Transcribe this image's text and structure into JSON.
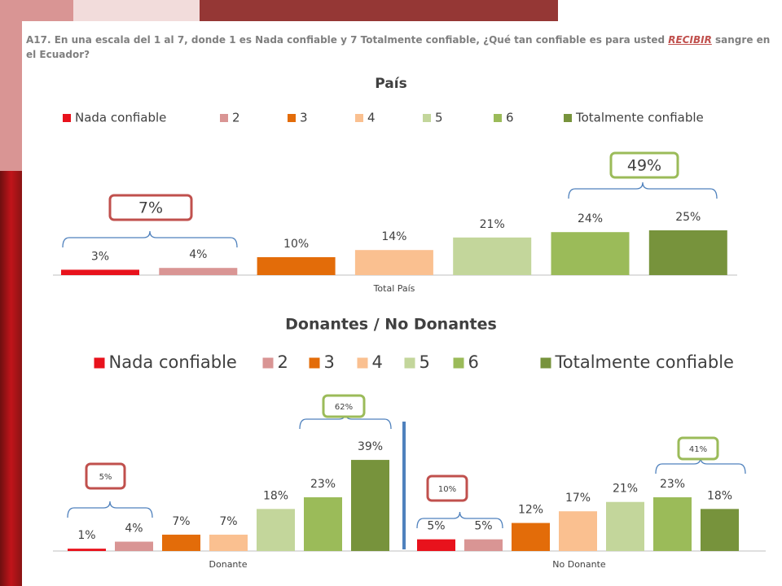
{
  "question": {
    "before": "A17. En una escala del 1 al 7, donde 1 es Nada confiable y 7 Totalmente confiable, ¿Qué tan confiable es para usted ",
    "highlight": "RECIBIR",
    "after": " sangre en el Ecuador?"
  },
  "chart_data": [
    {
      "type": "bar",
      "title": "País",
      "categories": [
        "Total País"
      ],
      "series": [
        {
          "name": "Nada confiable",
          "color": "#e8121c",
          "values": [
            3
          ],
          "value_labels": [
            "3%"
          ]
        },
        {
          "name": "2",
          "color": "#d99594",
          "values": [
            4
          ],
          "value_labels": [
            "4%"
          ]
        },
        {
          "name": "3",
          "color": "#e36c09",
          "values": [
            10
          ],
          "value_labels": [
            "10%"
          ]
        },
        {
          "name": "4",
          "color": "#fac090",
          "values": [
            14
          ],
          "value_labels": [
            "14%"
          ]
        },
        {
          "name": "5",
          "color": "#c3d69b",
          "values": [
            21
          ],
          "value_labels": [
            "21%"
          ]
        },
        {
          "name": "6",
          "color": "#9bbb59",
          "values": [
            24
          ],
          "value_labels": [
            "24%"
          ]
        },
        {
          "name": "Totalmente confiable",
          "color": "#77933c",
          "values": [
            25
          ],
          "value_labels": [
            "25%"
          ]
        }
      ],
      "annotations": [
        "7%",
        "49%"
      ]
    },
    {
      "type": "bar",
      "title": "Donantes / No Donantes",
      "categories": [
        "Donante",
        "No Donante"
      ],
      "series": [
        {
          "name": "Nada confiable",
          "color": "#e8121c",
          "values": [
            1,
            5
          ],
          "value_labels": [
            "1%",
            "5%"
          ]
        },
        {
          "name": "2",
          "color": "#d99594",
          "values": [
            4,
            5
          ],
          "value_labels": [
            "4%",
            "5%"
          ]
        },
        {
          "name": "3",
          "color": "#e36c09",
          "values": [
            7,
            12
          ],
          "value_labels": [
            "7%",
            "12%"
          ]
        },
        {
          "name": "4",
          "color": "#fac090",
          "values": [
            7,
            17
          ],
          "value_labels": [
            "7%",
            "17%"
          ]
        },
        {
          "name": "5",
          "color": "#c3d69b",
          "values": [
            18,
            21
          ],
          "value_labels": [
            "18%",
            "21%"
          ]
        },
        {
          "name": "6",
          "color": "#9bbb59",
          "values": [
            23,
            23
          ],
          "value_labels": [
            "23%",
            "23%"
          ]
        },
        {
          "name": "Totalmente confiable",
          "color": "#77933c",
          "values": [
            39,
            18
          ],
          "value_labels": [
            "39%",
            "18%"
          ]
        }
      ],
      "annotations": [
        "5%",
        "62%",
        "10%",
        "41%"
      ]
    }
  ]
}
